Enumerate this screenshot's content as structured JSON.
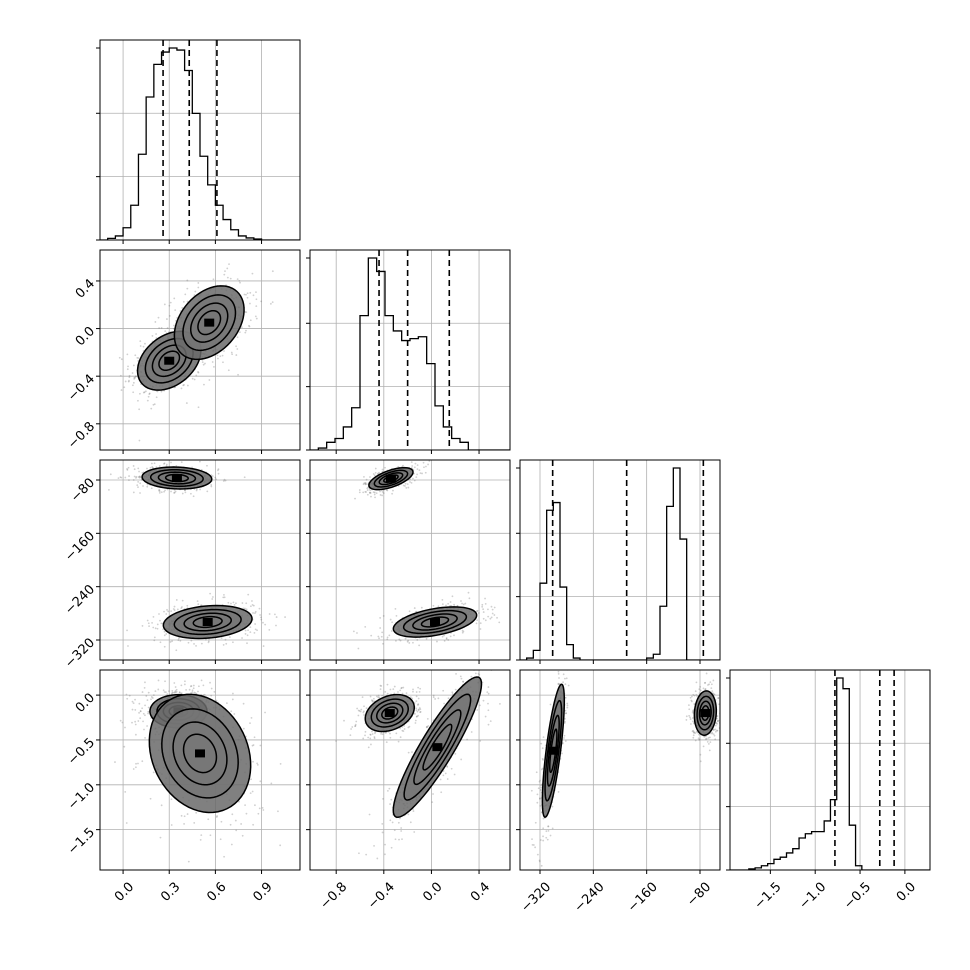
{
  "chart_data": {
    "type": "corner",
    "parameters": [
      {
        "id": "p0",
        "range": [
          -0.15,
          1.15
        ],
        "ticks": [
          "0.0",
          "0.3",
          "0.6",
          "0.9"
        ],
        "tick_values": [
          0.0,
          0.3,
          0.6,
          0.9
        ],
        "quantiles": [
          0.26,
          0.43,
          0.61
        ]
      },
      {
        "id": "p1",
        "range": [
          -1.02,
          0.66
        ],
        "ticks": [
          "−0.8",
          "−0.4",
          "0.0",
          "0.4"
        ],
        "tick_values": [
          -0.8,
          -0.4,
          0.0,
          0.4
        ],
        "quantiles": [
          -0.44,
          -0.2,
          0.15
        ]
      },
      {
        "id": "p2",
        "range": [
          -350,
          -50
        ],
        "ticks": [
          "−320",
          "−240",
          "−160",
          "−80"
        ],
        "tick_values": [
          -320,
          -240,
          -160,
          -80
        ],
        "quantiles": [
          -301,
          -190,
          -75
        ]
      },
      {
        "id": "p3",
        "range": [
          -1.95,
          0.28
        ],
        "ticks": [
          "−1.5",
          "−1.0",
          "−0.5",
          "0.0"
        ],
        "tick_values": [
          -1.5,
          -1.0,
          -0.5,
          0.0
        ],
        "quantiles": [
          -0.78,
          -0.28,
          -0.12
        ]
      }
    ],
    "histograms": [
      {
        "param": "p0",
        "bin_start": -0.15,
        "bin_width": 0.05,
        "values": [
          0,
          0.8,
          2,
          6,
          17,
          42,
          70,
          86,
          92,
          94,
          93,
          83,
          62,
          41,
          27,
          17,
          10,
          5,
          2,
          1,
          0.5,
          0,
          0,
          0,
          0,
          0
        ]
      },
      {
        "param": "p1",
        "bin_start": -1.02,
        "bin_width": 0.07,
        "values": [
          0,
          1,
          4,
          6,
          12,
          22,
          70,
          100,
          93,
          70,
          62,
          57,
          58,
          59,
          45,
          23,
          12,
          6,
          4,
          0,
          0,
          0,
          0,
          0
        ]
      },
      {
        "param": "p2",
        "bin_start": -350,
        "bin_width": 10,
        "values": [
          0,
          1,
          5,
          40,
          78,
          82,
          38,
          8,
          1,
          0,
          0,
          0,
          0,
          0,
          0,
          0,
          0,
          0,
          0,
          1,
          3,
          28,
          80,
          100,
          63,
          0,
          0,
          0,
          0,
          0
        ]
      },
      {
        "param": "p3",
        "bin_start": -1.95,
        "bin_width": 0.07,
        "values": [
          0,
          0,
          0,
          0.5,
          1,
          2,
          3,
          5,
          6,
          8,
          10,
          15,
          17,
          18,
          18,
          23,
          33,
          90,
          85,
          21,
          2,
          0,
          0,
          0,
          0,
          0,
          0,
          0,
          0,
          0,
          0,
          0
        ]
      }
    ],
    "joint": [
      {
        "x": "p0",
        "y": "p1",
        "components": [
          {
            "weight": 0.55,
            "mean": [
              0.3,
              -0.27
            ],
            "sd": [
              0.1,
              0.12
            ],
            "rho": 0.35
          },
          {
            "weight": 0.45,
            "mean": [
              0.56,
              0.05
            ],
            "sd": [
              0.11,
              0.15
            ],
            "rho": 0.35
          }
        ]
      },
      {
        "x": "p0",
        "y": "p2",
        "components": [
          {
            "weight": 0.5,
            "mean": [
              0.35,
              -77
            ],
            "sd": [
              0.11,
              8
            ],
            "rho": -0.1
          },
          {
            "weight": 0.5,
            "mean": [
              0.55,
              -293
            ],
            "sd": [
              0.14,
              12
            ],
            "rho": 0.2
          }
        ]
      },
      {
        "x": "p0",
        "y": "p3",
        "components": [
          {
            "weight": 0.6,
            "mean": [
              0.36,
              -0.18
            ],
            "sd": [
              0.09,
              0.09
            ],
            "rho": 0.0
          },
          {
            "weight": 0.4,
            "mean": [
              0.5,
              -0.65
            ],
            "sd": [
              0.16,
              0.32
            ],
            "rho": -0.2
          }
        ]
      },
      {
        "x": "p1",
        "y": "p2",
        "components": [
          {
            "weight": 0.5,
            "mean": [
              -0.34,
              -78
            ],
            "sd": [
              0.09,
              8
            ],
            "rho": 0.6
          },
          {
            "weight": 0.5,
            "mean": [
              0.03,
              -293
            ],
            "sd": [
              0.17,
              11
            ],
            "rho": 0.45
          }
        ]
      },
      {
        "x": "p1",
        "y": "p3",
        "components": [
          {
            "weight": 0.5,
            "mean": [
              -0.35,
              -0.2
            ],
            "sd": [
              0.1,
              0.1
            ],
            "rho": 0.3
          },
          {
            "weight": 0.5,
            "mean": [
              0.05,
              -0.58
            ],
            "sd": [
              0.18,
              0.38
            ],
            "rho": 0.9
          }
        ]
      },
      {
        "x": "p2",
        "y": "p3",
        "components": [
          {
            "weight": 0.5,
            "mean": [
              -300,
              -0.62
            ],
            "sd": [
              8,
              0.36
            ],
            "rho": 0.75
          },
          {
            "weight": 0.5,
            "mean": [
              -72,
              -0.2
            ],
            "sd": [
              8,
              0.12
            ],
            "rho": 0.1
          }
        ]
      }
    ],
    "contour_levels": [
      0.12,
      0.3,
      0.55,
      0.8
    ],
    "grid": true,
    "colors": {
      "line": "#000000",
      "grid": "#b0b0b0",
      "points": "#777777"
    }
  }
}
